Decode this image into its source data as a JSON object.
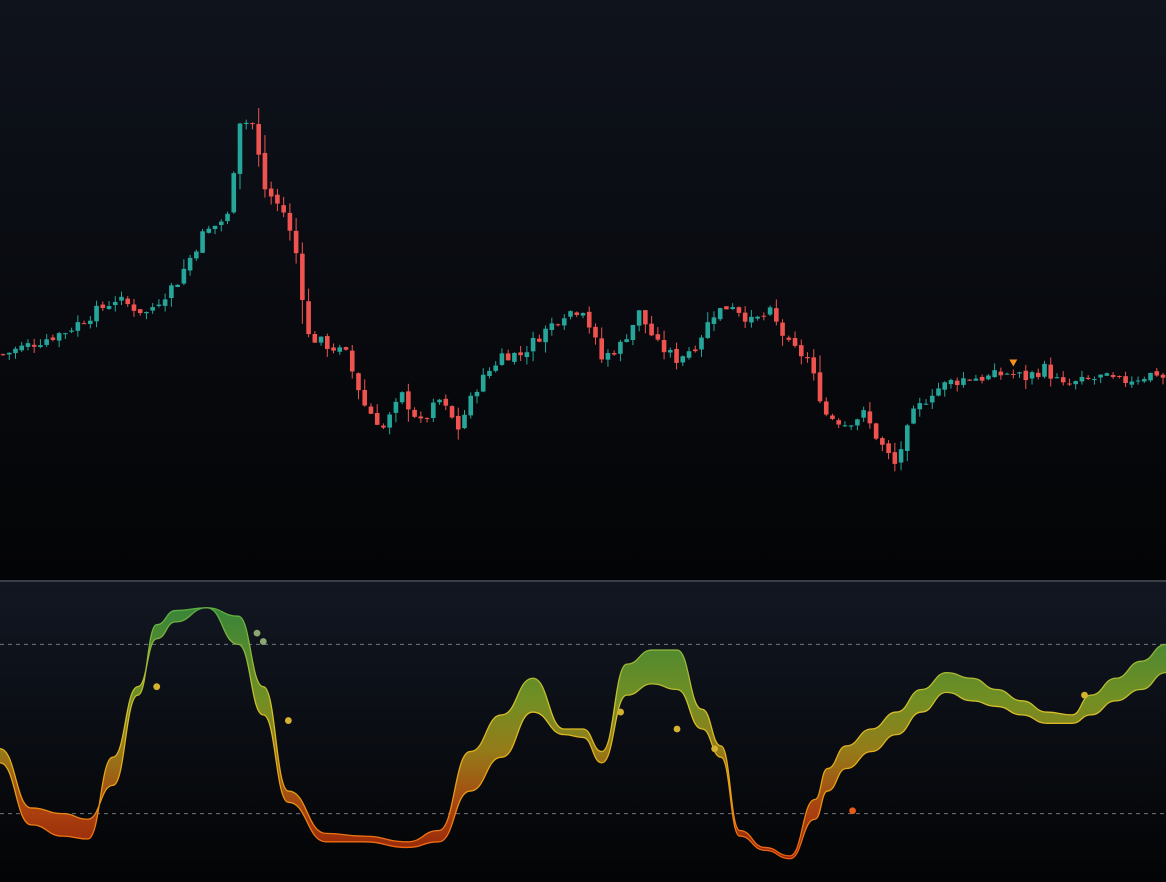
{
  "chart_data": [
    {
      "type": "candlestick",
      "title": "",
      "xlabel": "",
      "ylabel": "",
      "ylim": [
        0,
        100
      ],
      "grid": false,
      "legend": "none",
      "colors": {
        "up": "#26a69a",
        "down": "#ef5350",
        "signal": "#f7931a"
      },
      "anchors": [
        [
          0,
          36
        ],
        [
          4,
          38
        ],
        [
          10,
          41
        ],
        [
          18,
          48
        ],
        [
          23,
          45
        ],
        [
          28,
          52
        ],
        [
          32,
          62
        ],
        [
          36,
          66
        ],
        [
          38,
          87
        ],
        [
          40,
          86
        ],
        [
          42,
          72
        ],
        [
          45,
          67
        ],
        [
          47,
          58
        ],
        [
          49,
          40
        ],
        [
          52,
          38
        ],
        [
          55,
          36
        ],
        [
          58,
          25
        ],
        [
          61,
          20
        ],
        [
          64,
          27
        ],
        [
          67,
          21
        ],
        [
          70,
          26
        ],
        [
          73,
          20
        ],
        [
          76,
          29
        ],
        [
          80,
          36
        ],
        [
          83,
          36
        ],
        [
          86,
          40
        ],
        [
          90,
          45
        ],
        [
          93,
          46
        ],
        [
          96,
          35
        ],
        [
          99,
          38
        ],
        [
          102,
          45
        ],
        [
          105,
          38
        ],
        [
          108,
          35
        ],
        [
          111,
          38
        ],
        [
          114,
          45
        ],
        [
          117,
          47
        ],
        [
          120,
          43
        ],
        [
          123,
          45
        ],
        [
          126,
          38
        ],
        [
          129,
          35
        ],
        [
          132,
          23
        ],
        [
          135,
          21
        ],
        [
          138,
          23
        ],
        [
          141,
          16
        ],
        [
          143,
          12
        ],
        [
          146,
          23
        ],
        [
          149,
          28
        ],
        [
          152,
          30
        ],
        [
          155,
          31
        ],
        [
          158,
          31
        ],
        [
          161,
          32
        ],
        [
          164,
          31
        ],
        [
          167,
          33
        ],
        [
          170,
          29
        ],
        [
          173,
          30
        ],
        [
          176,
          31
        ],
        [
          179,
          30
        ],
        [
          182,
          31
        ],
        [
          185,
          32
        ],
        [
          186,
          31
        ]
      ],
      "signal_marker_index": 162
    },
    {
      "type": "area",
      "title": "",
      "xlabel": "",
      "ylabel": "",
      "ylim": [
        0,
        100
      ],
      "grid": false,
      "levels": [
        80,
        20
      ],
      "x": [
        0,
        5,
        10,
        14,
        18,
        22,
        25,
        28,
        33,
        38,
        42,
        46,
        52,
        58,
        65,
        70,
        75,
        80,
        85,
        90,
        93,
        96,
        100,
        104,
        108,
        112,
        115,
        118,
        122,
        126,
        130,
        132,
        135,
        139,
        143,
        147,
        151,
        155,
        159,
        163,
        167,
        171,
        174,
        178,
        182,
        186
      ],
      "series": [
        {
          "values": [
            43,
            22,
            20,
            18,
            30,
            62,
            87,
            92,
            93,
            90,
            65,
            28,
            13,
            12,
            10,
            14,
            42,
            55,
            68,
            50,
            50,
            42,
            73,
            78,
            78,
            57,
            44,
            14,
            8,
            5,
            25,
            36,
            44,
            50,
            56,
            64,
            70,
            68,
            64,
            60,
            56,
            55,
            62,
            68,
            74,
            80
          ]
        },
        {
          "values": [
            38,
            16,
            12,
            11,
            40,
            65,
            82,
            88,
            93,
            80,
            55,
            24,
            10,
            10,
            8,
            10,
            28,
            40,
            56,
            48,
            47,
            38,
            62,
            66,
            64,
            50,
            40,
            12,
            7,
            4,
            18,
            28,
            36,
            42,
            48,
            56,
            63,
            60,
            58,
            55,
            52,
            52,
            55,
            60,
            64,
            70
          ]
        }
      ],
      "markers": [
        {
          "x": 25,
          "y": 65,
          "color": "#d4b12e"
        },
        {
          "x": 41,
          "y": 84,
          "color": "#8aa672"
        },
        {
          "x": 42,
          "y": 81,
          "color": "#8aa672"
        },
        {
          "x": 46,
          "y": 53,
          "color": "#d4b12e"
        },
        {
          "x": 99,
          "y": 56,
          "color": "#d4b12e"
        },
        {
          "x": 108,
          "y": 50,
          "color": "#d4b12e"
        },
        {
          "x": 114,
          "y": 43,
          "color": "#d4b12e"
        },
        {
          "x": 136,
          "y": 21,
          "color": "#e85a16"
        },
        {
          "x": 173,
          "y": 62,
          "color": "#d4b12e"
        }
      ]
    }
  ]
}
